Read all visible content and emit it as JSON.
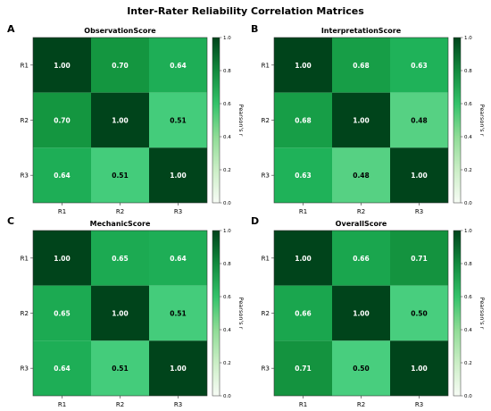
{
  "figure_title": "Inter-Rater Reliability Correlation Matrices",
  "colorscale": {
    "label": "Pearson's r",
    "ticks": [
      "0.0",
      "0.2",
      "0.4",
      "0.6",
      "0.8",
      "1.0"
    ],
    "min": 0.0,
    "max": 1.0,
    "colors": {
      "low": "#f7fcf5",
      "mid": "#34c26a",
      "high": "#00441b"
    }
  },
  "chart_data": [
    {
      "type": "heatmap",
      "panel_label": "A",
      "title": "ObservationScore",
      "x_labels": [
        "R1",
        "R2",
        "R3"
      ],
      "y_labels": [
        "R1",
        "R2",
        "R3"
      ],
      "values": [
        [
          1.0,
          0.7,
          0.64
        ],
        [
          0.7,
          1.0,
          0.51
        ],
        [
          0.64,
          0.51,
          1.0
        ]
      ],
      "cell_labels": [
        [
          "1.00",
          "0.70",
          "0.64"
        ],
        [
          "0.70",
          "1.00",
          "0.51"
        ],
        [
          "0.64",
          "0.51",
          "1.00"
        ]
      ],
      "zlim": [
        0.0,
        1.0
      ]
    },
    {
      "type": "heatmap",
      "panel_label": "B",
      "title": "InterpretationScore",
      "x_labels": [
        "R1",
        "R2",
        "R3"
      ],
      "y_labels": [
        "R1",
        "R2",
        "R3"
      ],
      "values": [
        [
          1.0,
          0.68,
          0.63
        ],
        [
          0.68,
          1.0,
          0.48
        ],
        [
          0.63,
          0.48,
          1.0
        ]
      ],
      "cell_labels": [
        [
          "1.00",
          "0.68",
          "0.63"
        ],
        [
          "0.68",
          "1.00",
          "0.48"
        ],
        [
          "0.63",
          "0.48",
          "1.00"
        ]
      ],
      "zlim": [
        0.0,
        1.0
      ]
    },
    {
      "type": "heatmap",
      "panel_label": "C",
      "title": "MechanicScore",
      "x_labels": [
        "R1",
        "R2",
        "R3"
      ],
      "y_labels": [
        "R1",
        "R2",
        "R3"
      ],
      "values": [
        [
          1.0,
          0.65,
          0.64
        ],
        [
          0.65,
          1.0,
          0.51
        ],
        [
          0.64,
          0.51,
          1.0
        ]
      ],
      "cell_labels": [
        [
          "1.00",
          "0.65",
          "0.64"
        ],
        [
          "0.65",
          "1.00",
          "0.51"
        ],
        [
          "0.64",
          "0.51",
          "1.00"
        ]
      ],
      "zlim": [
        0.0,
        1.0
      ]
    },
    {
      "type": "heatmap",
      "panel_label": "D",
      "title": "OverallScore",
      "x_labels": [
        "R1",
        "R2",
        "R3"
      ],
      "y_labels": [
        "R1",
        "R2",
        "R3"
      ],
      "values": [
        [
          1.0,
          0.66,
          0.71
        ],
        [
          0.66,
          1.0,
          0.5
        ],
        [
          0.71,
          0.5,
          1.0
        ]
      ],
      "cell_labels": [
        [
          "1.00",
          "0.66",
          "0.71"
        ],
        [
          "0.66",
          "1.00",
          "0.50"
        ],
        [
          "0.71",
          "0.50",
          "1.00"
        ]
      ],
      "zlim": [
        0.0,
        1.0
      ]
    }
  ]
}
